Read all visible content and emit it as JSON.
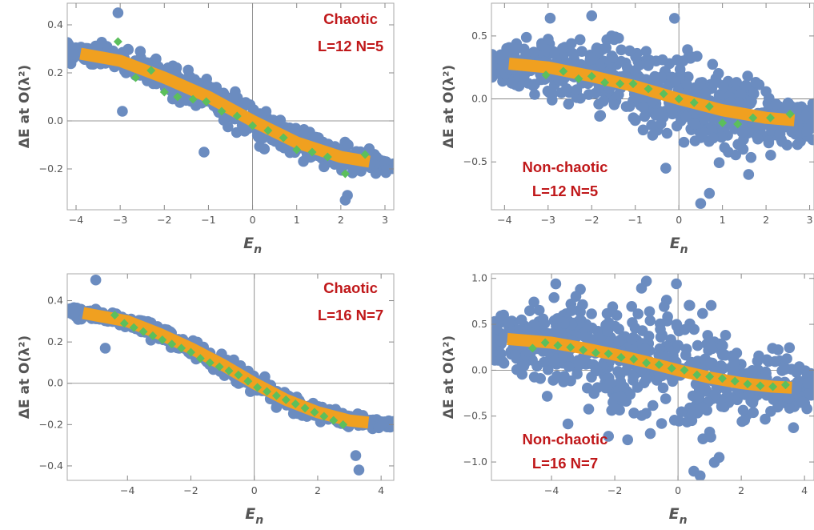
{
  "chart_data": [
    {
      "type": "scatter",
      "panel": "top-left",
      "annotation": [
        "Chaotic",
        "L=12    N=5"
      ],
      "ylabel": "ΔE at O(λ²)",
      "xlabel": "E_n",
      "xlim": [
        -4.2,
        3.2
      ],
      "ylim": [
        -0.37,
        0.49
      ],
      "xticks": [
        -4,
        -3,
        -2,
        -1,
        0,
        1,
        2,
        3
      ],
      "yticks": [
        -0.2,
        0.0,
        0.2,
        0.4
      ],
      "ytick_labels": [
        "-0.2",
        "0.0",
        "0.2",
        "0.4"
      ],
      "band": {
        "x": [
          -3.9,
          -3.0,
          -2.0,
          -1.0,
          0.0,
          1.0,
          2.0,
          2.65
        ],
        "y": [
          0.28,
          0.25,
          0.18,
          0.1,
          0.0,
          -0.09,
          -0.15,
          -0.17
        ]
      },
      "scatter": {
        "x_min": -4.2,
        "x_max": 3.2,
        "spread": 0.06
      },
      "series": [
        {
          "x": [
            -3.05,
            -2.65,
            -2.3,
            -2.0,
            -1.7,
            -1.35,
            -1.05,
            -0.7,
            -0.35,
            0.0,
            0.35,
            0.7,
            1.0,
            1.35,
            1.7,
            2.1,
            2.55
          ],
          "values": [
            0.33,
            0.18,
            0.21,
            0.12,
            0.1,
            0.09,
            0.08,
            0.04,
            0.02,
            -0.02,
            -0.04,
            -0.07,
            -0.12,
            -0.13,
            -0.15,
            -0.22,
            -0.14
          ]
        }
      ],
      "outliers": [
        [
          -3.05,
          0.45
        ],
        [
          -2.95,
          0.04
        ],
        [
          -1.1,
          -0.13
        ],
        [
          2.15,
          -0.31
        ],
        [
          2.1,
          -0.33
        ]
      ]
    },
    {
      "type": "scatter",
      "panel": "top-right",
      "annotation": [
        "Non-chaotic",
        "L=12    N=5"
      ],
      "ylabel": "ΔE at O(λ²)",
      "xlabel": "E_n",
      "xlim": [
        -4.3,
        3.1
      ],
      "ylim": [
        -0.88,
        0.76
      ],
      "xticks": [
        -4,
        -3,
        -2,
        -1,
        0,
        1,
        2,
        3
      ],
      "yticks": [
        -0.5,
        0.0,
        0.5
      ],
      "ytick_labels": [
        "-0.5",
        "0.0",
        "0.5"
      ],
      "band": {
        "x": [
          -3.9,
          -3.0,
          -2.0,
          -1.0,
          0.0,
          1.0,
          2.0,
          2.65
        ],
        "y": [
          0.28,
          0.25,
          0.18,
          0.1,
          0.0,
          -0.09,
          -0.15,
          -0.17
        ]
      },
      "scatter": {
        "x_min": -4.3,
        "x_max": 3.1,
        "spread": 0.3
      },
      "series": [
        {
          "x": [
            -3.05,
            -2.65,
            -2.3,
            -2.0,
            -1.7,
            -1.35,
            -1.05,
            -0.7,
            -0.35,
            0.0,
            0.35,
            0.7,
            1.0,
            1.35,
            1.7,
            2.1,
            2.55
          ],
          "values": [
            0.19,
            0.22,
            0.16,
            0.18,
            0.13,
            0.12,
            0.12,
            0.08,
            0.04,
            0.0,
            -0.03,
            -0.06,
            -0.19,
            -0.2,
            -0.15,
            -0.15,
            -0.12
          ]
        }
      ],
      "outliers": [
        [
          -2.0,
          0.66
        ],
        [
          -0.1,
          0.64
        ],
        [
          0.5,
          -0.83
        ],
        [
          0.7,
          -0.75
        ],
        [
          -0.3,
          -0.55
        ],
        [
          1.6,
          -0.6
        ]
      ]
    },
    {
      "type": "scatter",
      "panel": "bottom-left",
      "annotation": [
        "Chaotic",
        "L=16    N=7"
      ],
      "ylabel": "ΔE at O(λ²)",
      "xlabel": "E_n",
      "xlim": [
        -5.9,
        4.4
      ],
      "ylim": [
        -0.47,
        0.53
      ],
      "xticks": [
        -4,
        -2,
        0,
        2,
        4
      ],
      "yticks": [
        -0.4,
        -0.2,
        0.0,
        0.2,
        0.4
      ],
      "ytick_labels": [
        "-0.4",
        "-0.2",
        "0.0",
        "0.2",
        "0.4"
      ],
      "band": {
        "x": [
          -5.4,
          -4.0,
          -3.0,
          -2.0,
          -1.0,
          0.0,
          1.0,
          2.0,
          3.0,
          3.6
        ],
        "y": [
          0.34,
          0.3,
          0.24,
          0.17,
          0.09,
          0.0,
          -0.08,
          -0.14,
          -0.18,
          -0.19
        ]
      },
      "scatter": {
        "x_min": -5.9,
        "x_max": 4.4,
        "spread": 0.04
      },
      "series": [
        {
          "x": [
            -4.4,
            -4.1,
            -3.8,
            -3.5,
            -3.2,
            -2.9,
            -2.6,
            -2.3,
            -2.0,
            -1.7,
            -1.4,
            -1.1,
            -0.8,
            -0.5,
            -0.2,
            0.1,
            0.4,
            0.7,
            1.0,
            1.3,
            1.6,
            1.9,
            2.2,
            2.5,
            2.8
          ],
          "values": [
            0.33,
            0.29,
            0.27,
            0.25,
            0.23,
            0.21,
            0.19,
            0.17,
            0.15,
            0.12,
            0.1,
            0.08,
            0.06,
            0.04,
            0.01,
            -0.02,
            -0.04,
            -0.06,
            -0.08,
            -0.1,
            -0.12,
            -0.14,
            -0.16,
            -0.18,
            -0.2
          ]
        }
      ],
      "outliers": [
        [
          -5.0,
          0.5
        ],
        [
          -4.7,
          0.17
        ],
        [
          3.3,
          -0.42
        ],
        [
          3.2,
          -0.35
        ]
      ]
    },
    {
      "type": "scatter",
      "panel": "bottom-right",
      "annotation": [
        "Non-chaotic",
        "L=16    N=7"
      ],
      "ylabel": "ΔE at O(λ²)",
      "xlabel": "E_n",
      "xlim": [
        -5.9,
        4.3
      ],
      "ylim": [
        -1.2,
        1.05
      ],
      "xticks": [
        -4,
        -2,
        0,
        2,
        4
      ],
      "yticks": [
        -1.0,
        -0.5,
        0.0,
        0.5,
        1.0
      ],
      "ytick_labels": [
        "-1.0",
        "-0.5",
        "0.0",
        "0.5",
        "1.0"
      ],
      "band": {
        "x": [
          -5.4,
          -4.0,
          -3.0,
          -2.0,
          -1.0,
          0.0,
          1.0,
          2.0,
          3.0,
          3.6
        ],
        "y": [
          0.34,
          0.3,
          0.24,
          0.17,
          0.09,
          0.0,
          -0.08,
          -0.14,
          -0.18,
          -0.19
        ]
      },
      "scatter": {
        "x_min": -5.9,
        "x_max": 4.3,
        "spread": 0.55
      },
      "series": [
        {
          "x": [
            -4.6,
            -4.2,
            -3.8,
            -3.4,
            -3.0,
            -2.6,
            -2.2,
            -1.8,
            -1.4,
            -1.0,
            -0.6,
            -0.2,
            0.2,
            0.6,
            1.0,
            1.4,
            1.8,
            2.2,
            2.6,
            3.0,
            3.4
          ],
          "values": [
            0.24,
            0.3,
            0.27,
            0.25,
            0.22,
            0.19,
            0.18,
            0.14,
            0.12,
            0.08,
            0.06,
            0.02,
            0.0,
            -0.05,
            -0.07,
            -0.09,
            -0.12,
            -0.15,
            -0.17,
            -0.18,
            -0.16
          ]
        }
      ],
      "outliers": [
        [
          -1.0,
          0.97
        ],
        [
          0.5,
          -1.1
        ],
        [
          0.7,
          -1.15
        ],
        [
          -2.2,
          -0.72
        ],
        [
          1.3,
          -0.95
        ]
      ]
    }
  ],
  "colors": {
    "scatter": "#6b8cc0",
    "band": "#f0a020",
    "diamond": "#5cbf5c",
    "annotation": "#c0181a",
    "axis_text": "#555555",
    "frame": "#aaaaaa"
  }
}
